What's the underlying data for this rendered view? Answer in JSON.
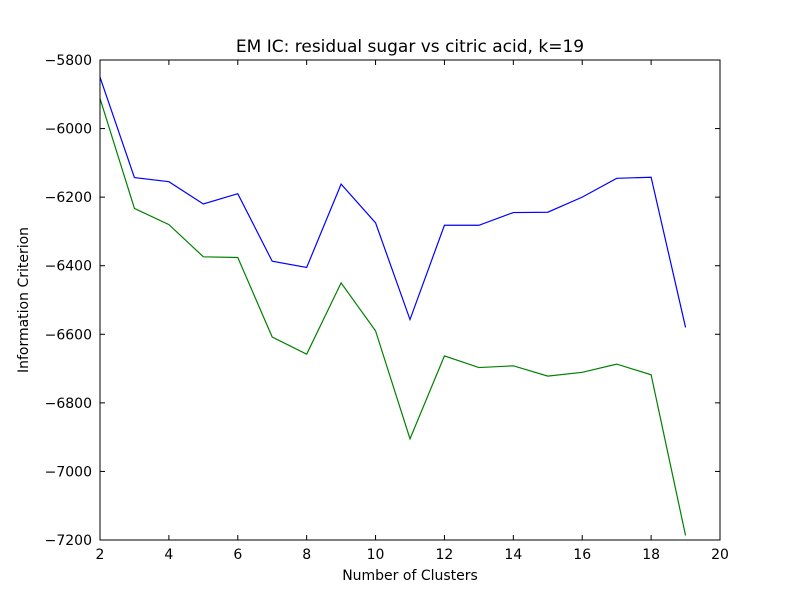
{
  "chart_data": {
    "type": "line",
    "title": "EM IC: residual sugar vs citric acid, k=19",
    "xlabel": "Number of Clusters",
    "ylabel": "Information Criterion",
    "xlim": [
      2,
      20
    ],
    "ylim": [
      -7200,
      -5800
    ],
    "xticks": [
      2,
      4,
      6,
      8,
      10,
      12,
      14,
      16,
      18,
      20
    ],
    "yticks": [
      -5800,
      -6000,
      -6200,
      -6400,
      -6600,
      -6800,
      -7000,
      -7200
    ],
    "grid": false,
    "x": [
      2,
      3,
      4,
      5,
      6,
      7,
      8,
      9,
      10,
      11,
      12,
      13,
      14,
      15,
      16,
      17,
      18,
      19
    ],
    "series": [
      {
        "color": "#0000ff",
        "values": [
          -5850,
          -6143,
          -6155,
          -6220,
          -6190,
          -6387,
          -6405,
          -6162,
          -6275,
          -6557,
          -6282,
          -6282,
          -6245,
          -6244,
          -6200,
          -6145,
          -6142,
          -6580
        ]
      },
      {
        "color": "#008000",
        "values": [
          -5912,
          -6233,
          -6280,
          -6374,
          -6376,
          -6608,
          -6658,
          -6450,
          -6590,
          -6905,
          -6663,
          -6697,
          -6692,
          -6722,
          -6711,
          -6687,
          -6718,
          -7187
        ]
      }
    ]
  }
}
